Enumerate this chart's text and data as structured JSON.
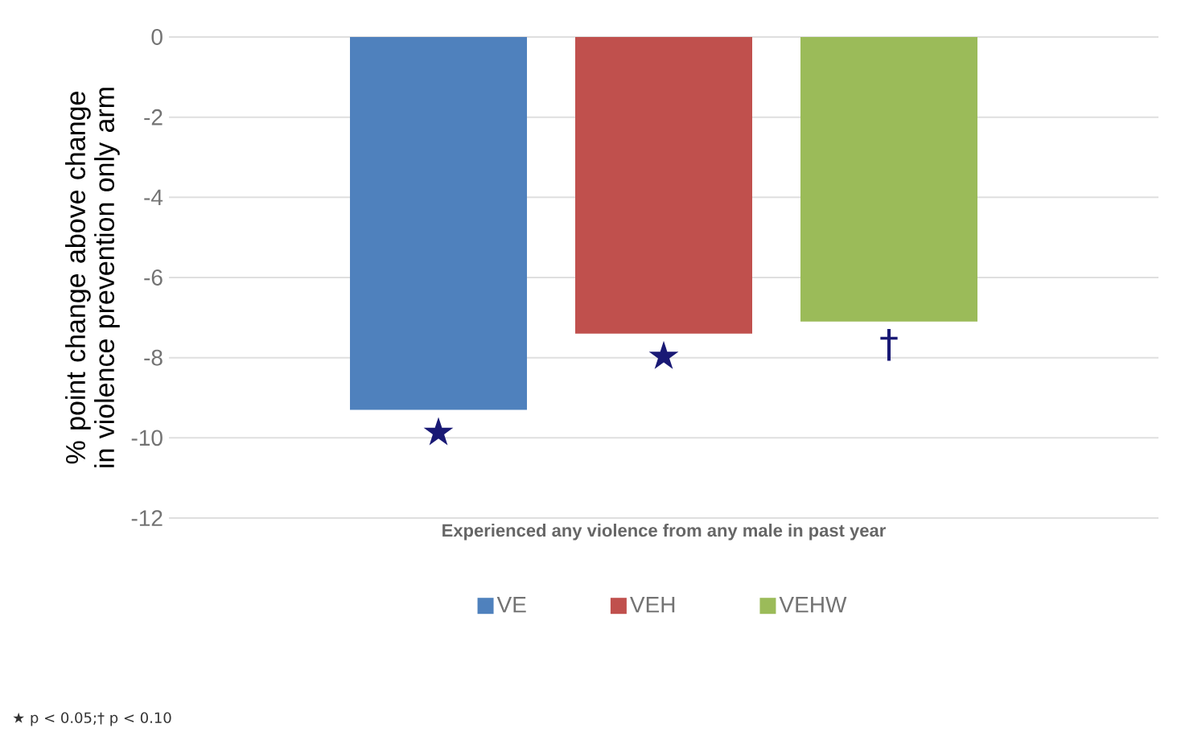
{
  "chart_data": {
    "type": "bar",
    "ylabel": "% point change above change in violence prevention only arm",
    "categories": [
      "Experienced any violence from any male in past year"
    ],
    "series": [
      {
        "name": "VE",
        "color": "#4f81bd",
        "values": [
          -9.3
        ]
      },
      {
        "name": "VEH",
        "color": "#c0504d",
        "values": [
          -7.4
        ]
      },
      {
        "name": "VEHW",
        "color": "#9bbb59",
        "values": [
          -7.1
        ]
      }
    ],
    "ylim": [
      -12,
      0
    ],
    "yticks": [
      -12,
      -10,
      -8,
      -6,
      -4,
      -2,
      0
    ],
    "grid": "y",
    "legend": "bottom",
    "annotations": [
      "★",
      "★",
      "†",
      "★ p < 0.05;† p < 0.10"
    ]
  }
}
